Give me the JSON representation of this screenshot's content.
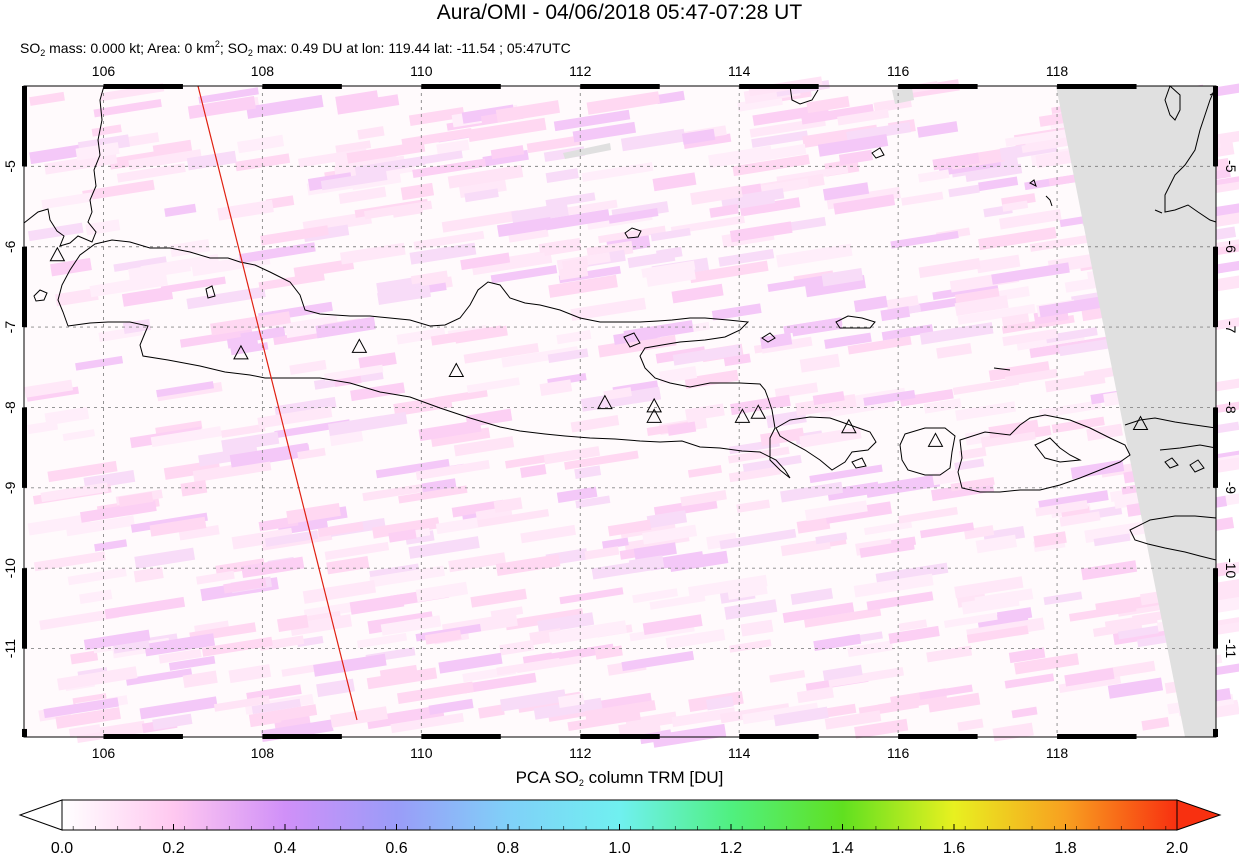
{
  "header": {
    "title": "Aura/OMI - 04/06/2018 05:47-07:28 UT",
    "stats_mass_label": "SO",
    "stats_mass_rest": " mass: 0.000 kt; Area: 0 km",
    "stats_area_sup": "2",
    "stats_so2_prefix": "; SO",
    "stats_max_rest": " max: 0.49 DU at lon: 119.44 lat: -11.54 ; 05:47UTC",
    "sub_2": "2"
  },
  "map": {
    "lon_ticks": [
      "106",
      "108",
      "110",
      "112",
      "114",
      "116",
      "118"
    ],
    "lat_ticks": [
      "-5",
      "-6",
      "-7",
      "-8",
      "-9",
      "-10",
      "-11"
    ],
    "lon_range": [
      105,
      120
    ],
    "lat_range": [
      -12.1,
      -4.0
    ],
    "grid": true,
    "orbit_line_color": "#e02010",
    "land_outline_color": "#000000",
    "no_data_color": "#e0e0e0",
    "volcano_marker": "triangle-outline",
    "volcanoes": [
      {
        "lon": 105.42,
        "lat": -6.1
      },
      {
        "lon": 107.73,
        "lat": -7.32
      },
      {
        "lon": 109.22,
        "lat": -7.24
      },
      {
        "lon": 110.44,
        "lat": -7.54
      },
      {
        "lon": 112.31,
        "lat": -7.94
      },
      {
        "lon": 112.93,
        "lat": -7.98
      },
      {
        "lon": 112.93,
        "lat": -8.11
      },
      {
        "lon": 114.04,
        "lat": -8.11
      },
      {
        "lon": 114.24,
        "lat": -8.06
      },
      {
        "lon": 115.38,
        "lat": -8.24
      },
      {
        "lon": 116.47,
        "lat": -8.41
      },
      {
        "lon": 119.05,
        "lat": -8.2
      }
    ]
  },
  "colorbar": {
    "title_prefix": "PCA SO",
    "title_sub": "2",
    "title_suffix": " column TRM [DU]",
    "min": 0.0,
    "max": 2.0,
    "tick_labels": [
      "0.0",
      "0.2",
      "0.4",
      "0.6",
      "0.8",
      "1.0",
      "1.2",
      "1.4",
      "1.6",
      "1.8",
      "2.0"
    ],
    "colors": [
      "#ffffff",
      "#ffc8f0",
      "#d090f8",
      "#9a9cf8",
      "#80d0f8",
      "#70f0f0",
      "#50f080",
      "#60e020",
      "#e8f020",
      "#f8a020",
      "#f83010"
    ]
  }
}
